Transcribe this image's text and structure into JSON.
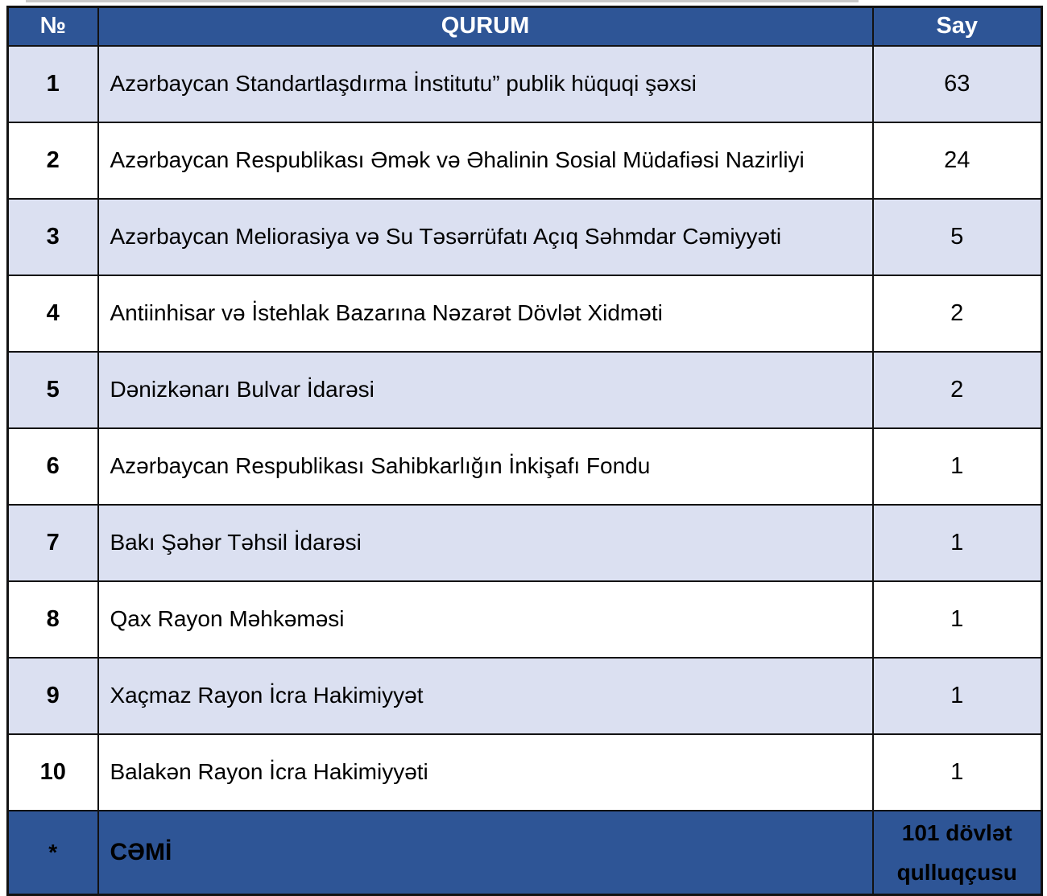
{
  "table": {
    "headers": {
      "no": "№",
      "qurum": "QURUM",
      "say": "Say"
    },
    "rows": [
      {
        "no": "1",
        "qurum": "Azərbaycan Standartlaşdırma İnstitutu” publik hüquqi şəxsi",
        "say": "63"
      },
      {
        "no": "2",
        "qurum": "Azərbaycan Respublikası Əmək və Əhalinin Sosial Müdafiəsi Nazirliyi",
        "say": "24"
      },
      {
        "no": "3",
        "qurum": "Azərbaycan Meliorasiya və Su Təsərrüfatı Açıq Səhmdar Cəmiyyəti",
        "say": "5"
      },
      {
        "no": "4",
        "qurum": "Antiinhisar və İstehlak Bazarına Nəzarət Dövlət Xidməti",
        "say": "2"
      },
      {
        "no": "5",
        "qurum": "Dənizkənarı Bulvar İdarəsi",
        "say": "2"
      },
      {
        "no": "6",
        "qurum": "Azərbaycan Respublikası Sahibkarlığın İnkişafı Fondu",
        "say": "1"
      },
      {
        "no": "7",
        "qurum": "Bakı Şəhər Təhsil İdarəsi",
        "say": "1"
      },
      {
        "no": "8",
        "qurum": "Qax Rayon Məhkəməsi",
        "say": "1"
      },
      {
        "no": "9",
        "qurum": "Xaçmaz Rayon İcra Hakimiyyət",
        "say": "1"
      },
      {
        "no": "10",
        "qurum": "Balakən Rayon İcra Hakimiyyəti",
        "say": "1"
      }
    ],
    "footer": {
      "no": "*",
      "qurum": "CƏMİ",
      "say": "101 dövlət qulluqçusu"
    },
    "colors": {
      "header_bg": "#2e5596",
      "stripe_bg": "#dbe0f1",
      "row_bg": "#ffffff",
      "border": "#121212",
      "header_text": "#ffffff",
      "body_text": "#000000"
    }
  }
}
